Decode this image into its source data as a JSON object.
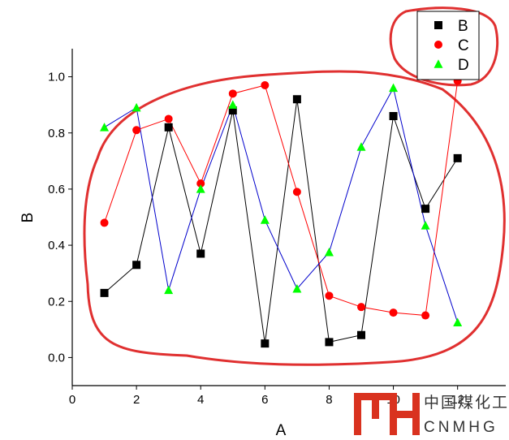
{
  "chart_data": {
    "type": "line",
    "xlabel": "A",
    "ylabel": "B",
    "xlim": [
      0,
      13.5
    ],
    "ylim": [
      -0.1,
      1.1
    ],
    "x_ticks": [
      0,
      2,
      4,
      6,
      8,
      10,
      12
    ],
    "y_ticks": [
      0.0,
      0.2,
      0.4,
      0.6,
      0.8,
      1.0
    ],
    "x_tick_labels": [
      "0",
      "2",
      "4",
      "6",
      "8",
      "10",
      "12"
    ],
    "y_tick_labels": [
      "0.0",
      "0.2",
      "0.4",
      "0.6",
      "0.8",
      "1.0"
    ],
    "grid": false,
    "legend_position": "top-right",
    "x": [
      1,
      2,
      3,
      4,
      5,
      6,
      7,
      8,
      9,
      10,
      11,
      12
    ],
    "series": [
      {
        "name": "B",
        "color": "#000000",
        "line_color": "#000000",
        "marker": "square",
        "values": [
          0.23,
          0.33,
          0.82,
          0.37,
          0.88,
          0.05,
          0.92,
          0.055,
          0.08,
          0.86,
          0.53,
          0.71
        ]
      },
      {
        "name": "C",
        "color": "#ff0000",
        "line_color": "#ff0000",
        "marker": "circle",
        "values": [
          0.48,
          0.81,
          0.85,
          0.62,
          0.94,
          0.97,
          0.59,
          0.22,
          0.18,
          0.16,
          0.15,
          0.985
        ]
      },
      {
        "name": "D",
        "color": "#00ff00",
        "line_color": "#0000cc",
        "marker": "triangle",
        "values": [
          0.82,
          0.89,
          0.24,
          0.6,
          0.9,
          0.49,
          0.245,
          0.375,
          0.75,
          0.96,
          0.47,
          0.125
        ]
      }
    ],
    "annotations": [
      {
        "type": "hand-drawn-outline",
        "color": "#e03030",
        "encloses": "data points"
      },
      {
        "type": "hand-drawn-outline",
        "color": "#e03030",
        "encloses": "legend"
      }
    ]
  },
  "watermark": {
    "chinese": "中国煤化工",
    "english": "CNMHG",
    "colors": {
      "logo": "#d9321f",
      "text": "#333333"
    }
  }
}
